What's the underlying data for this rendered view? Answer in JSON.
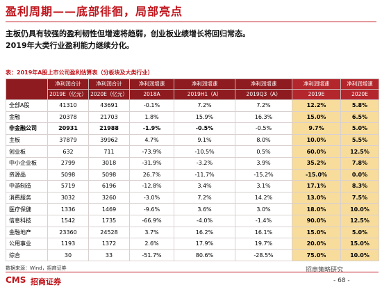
{
  "header": {
    "title": "盈利周期——底部徘徊，局部亮点",
    "lines": [
      "主板仍具有较强的盈利韧性但增速将趋弱，创业板业绩增长将回归常态。",
      "2019年大类行业盈利能力继续分化。"
    ]
  },
  "table": {
    "caption": "表：2019年A股上市公司盈利估算表（分板块及大类行业）",
    "columns": [
      {
        "top": "净利润合计",
        "bottom": "2019E（亿元）"
      },
      {
        "top": "净利润合计",
        "bottom": "2020E（亿元）"
      },
      {
        "top": "净利润增速",
        "bottom": "2018A"
      },
      {
        "top": "净利润增速",
        "bottom": "2019H1（A）"
      },
      {
        "top": "净利润增速",
        "bottom": "2019Q3（A）"
      },
      {
        "top": "净利润增速",
        "bottom": "2019E"
      },
      {
        "top": "净利润增速",
        "bottom": "2020E"
      }
    ],
    "rows": [
      [
        "全部A股",
        "41310",
        "43691",
        "-0.1%",
        "7.2%",
        "7.2%",
        "12.2%",
        "5.8%"
      ],
      [
        "金融",
        "20378",
        "21703",
        "1.8%",
        "15.9%",
        "16.3%",
        "15.0%",
        "6.5%"
      ],
      [
        "非金融公司",
        "20931",
        "21988",
        "-1.9%",
        "-0.5%",
        "-0.5%",
        "9.7%",
        "5.0%"
      ],
      [
        "主板",
        "37879",
        "39962",
        "4.7%",
        "9.1%",
        "8.0%",
        "10.0%",
        "5.5%"
      ],
      [
        "创业板",
        "632",
        "711",
        "-73.9%",
        "-10.5%",
        "0.5%",
        "60.0%",
        "12.5%"
      ],
      [
        "中小企业板",
        "2799",
        "3018",
        "-31.9%",
        "-3.2%",
        "3.9%",
        "35.2%",
        "7.8%"
      ],
      [
        "资源品",
        "5098",
        "5098",
        "26.7%",
        "-11.7%",
        "-15.2%",
        "-15.0%",
        "0.0%"
      ],
      [
        "中游制造",
        "5719",
        "6196",
        "-12.8%",
        "3.4%",
        "3.1%",
        "17.1%",
        "8.3%"
      ],
      [
        "消费服务",
        "3032",
        "3260",
        "-3.0%",
        "7.2%",
        "14.2%",
        "13.0%",
        "7.5%"
      ],
      [
        "医疗保健",
        "1336",
        "1469",
        "-9.6%",
        "3.6%",
        "3.0%",
        "18.0%",
        "10.0%"
      ],
      [
        "信息科技",
        "1542",
        "1735",
        "-66.9%",
        "-4.0%",
        "-1.4%",
        "90.0%",
        "12.5%"
      ],
      [
        "金融地产",
        "23360",
        "24528",
        "3.7%",
        "16.2%",
        "16.1%",
        "15.0%",
        "5.0%"
      ],
      [
        "公用事业",
        "1193",
        "1372",
        "2.6%",
        "17.9%",
        "19.7%",
        "20.0%",
        "15.0%"
      ],
      [
        "综合",
        "30",
        "33",
        "-51.7%",
        "80.6%",
        "-28.5%",
        "75.0%",
        "10.0%"
      ]
    ]
  },
  "footer": {
    "source": "数据来源：Wind，招商证券",
    "logo_mark": "CMS",
    "logo_text": "招商证券",
    "brand": "招商策略研究",
    "page": "- 68 -"
  }
}
